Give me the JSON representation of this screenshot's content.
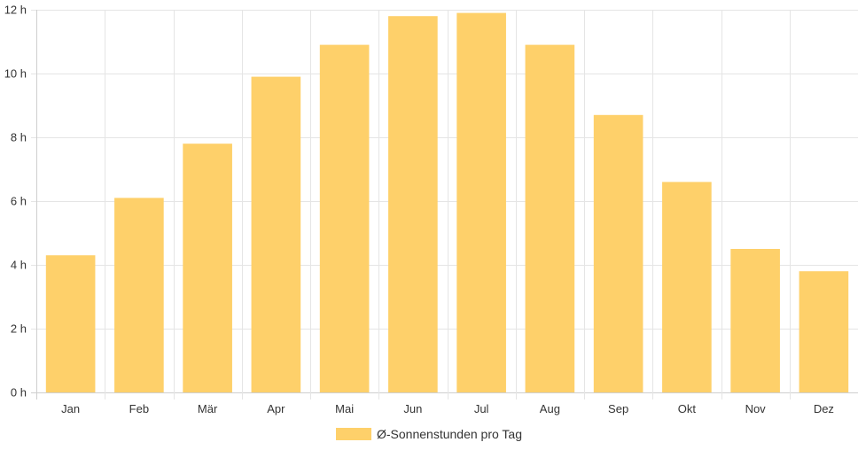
{
  "chart_data": {
    "type": "bar",
    "title": "",
    "xlabel": "",
    "ylabel": "",
    "categories": [
      "Jan",
      "Feb",
      "Mär",
      "Apr",
      "Mai",
      "Jun",
      "Jul",
      "Aug",
      "Sep",
      "Okt",
      "Nov",
      "Dez"
    ],
    "series": [
      {
        "name": "Ø-Sonnenstunden pro Tag",
        "values": [
          4.3,
          6.1,
          7.8,
          9.9,
          10.9,
          11.8,
          11.9,
          10.9,
          8.7,
          6.6,
          4.5,
          3.8
        ],
        "color": "#fed06a"
      }
    ],
    "ylim": [
      0,
      12
    ],
    "y_ticks": [
      0,
      2,
      4,
      6,
      8,
      10,
      12
    ],
    "y_tick_suffix": " h",
    "grid": true,
    "legend_position": "bottom"
  }
}
